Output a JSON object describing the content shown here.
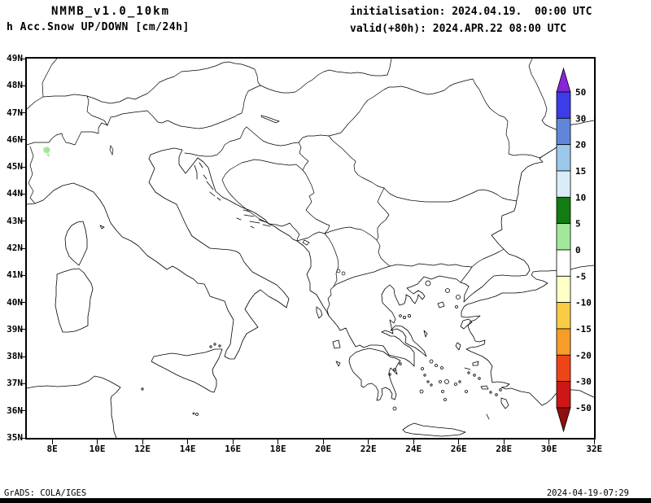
{
  "header": {
    "model_line": "NMMB_v1.0_10km",
    "variable_line": "h Acc.Snow UP/DOWN [cm/24h]",
    "init_line": "initialisation: 2024.04.19.  00:00 UTC",
    "valid_line": "valid(+80h): 2024.APR.22 08:00 UTC"
  },
  "map": {
    "x_axis_labels": [
      "8E",
      "10E",
      "12E",
      "14E",
      "16E",
      "18E",
      "20E",
      "22E",
      "24E",
      "26E",
      "28E",
      "30E",
      "32E"
    ],
    "y_axis_labels": [
      "49N",
      "48N",
      "47N",
      "46N",
      "45N",
      "44N",
      "43N",
      "42N",
      "41N",
      "40N",
      "39N",
      "38N",
      "37N",
      "36N",
      "35N"
    ],
    "snow_patch": {
      "color": "#a2e89a",
      "meaning": "0-5 cm snow accumulation",
      "location": "western Alps, ~7.7E 45.6N"
    }
  },
  "colorbar": {
    "tick_labels": [
      "50",
      "30",
      "20",
      "15",
      "10",
      "5",
      "0",
      "-5",
      "-10",
      "-15",
      "-20",
      "-30",
      "-50"
    ],
    "top_arrow_color": "#8626d8",
    "bottom_arrow_color": "#8f0f0f",
    "band_colors": [
      "#3c3ce8",
      "#5f86d8",
      "#9cc8ec",
      "#d8edf8",
      "#117c11",
      "#a2e89a",
      "#ffffff",
      "#ffffc8",
      "#f8cc44",
      "#f89c28",
      "#ee4418",
      "#cf1616"
    ]
  },
  "footer": {
    "credit": "GrADS: COLA/IGES",
    "timestamp": "2024-04-19-07:29"
  }
}
